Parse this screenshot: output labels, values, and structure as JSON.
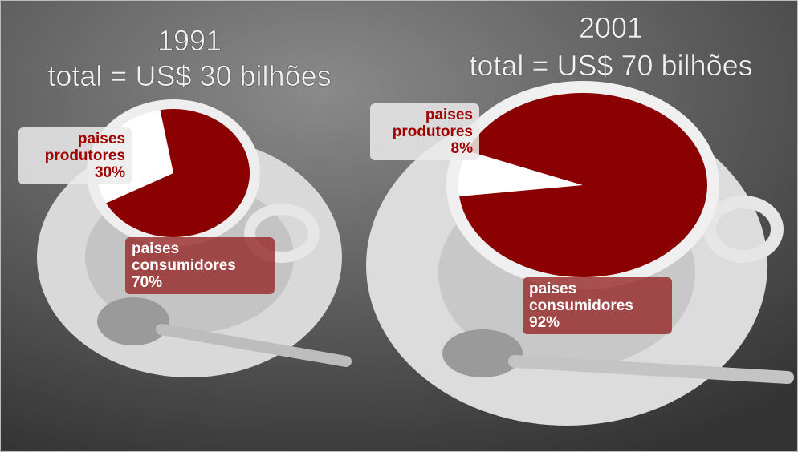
{
  "chart_data": [
    {
      "type": "pie",
      "title": "1991",
      "subtitle": "total = US$ 30 bilhões",
      "categories": [
        "paises produtores",
        "paises consumidores"
      ],
      "values": [
        30,
        70
      ],
      "value_labels": [
        "30%",
        "70%"
      ],
      "colors": [
        "#ffffff",
        "#8b0000"
      ]
    },
    {
      "type": "pie",
      "title": "2001",
      "subtitle": "total = US$ 70 bilhões",
      "categories": [
        "paises produtores",
        "paises consumidores"
      ],
      "values": [
        8,
        92
      ],
      "value_labels": [
        "8%",
        "92%"
      ],
      "colors": [
        "#ffffff",
        "#8b0000"
      ]
    }
  ]
}
